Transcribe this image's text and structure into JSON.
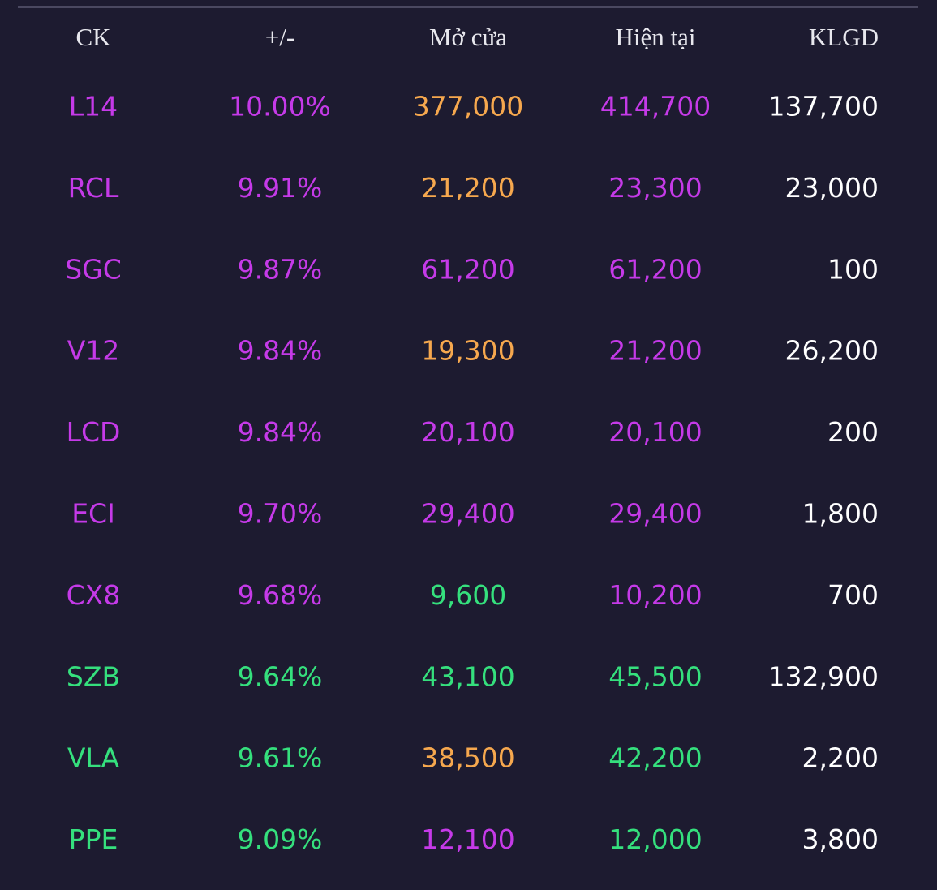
{
  "table": {
    "headers": [
      "CK",
      "+/-",
      "Mở cửa",
      "Hiện tại",
      "KLGD"
    ],
    "rows": [
      [
        "L14",
        "10.00%",
        "377,000",
        "414,700",
        "137,700"
      ],
      [
        "RCL",
        "9.91%",
        "21,200",
        "23,300",
        "23,000"
      ],
      [
        "SGC",
        "9.87%",
        "61,200",
        "61,200",
        "100"
      ],
      [
        "V12",
        "9.84%",
        "19,300",
        "21,200",
        "26,200"
      ],
      [
        "LCD",
        "9.84%",
        "20,100",
        "20,100",
        "200"
      ],
      [
        "ECI",
        "9.70%",
        "29,400",
        "29,400",
        "1,800"
      ],
      [
        "CX8",
        "9.68%",
        "9,600",
        "10,200",
        "700"
      ],
      [
        "SZB",
        "9.64%",
        "43,100",
        "45,500",
        "132,900"
      ],
      [
        "VLA",
        "9.61%",
        "38,500",
        "42,200",
        "2,200"
      ],
      [
        "PPE",
        "9.09%",
        "12,100",
        "12,000",
        "3,800"
      ]
    ],
    "cell_colors": [
      [
        "#c53ae8",
        "#c53ae8",
        "#f6a84e",
        "#c53ae8",
        "#ffffff"
      ],
      [
        "#c53ae8",
        "#c53ae8",
        "#f6a84e",
        "#c53ae8",
        "#ffffff"
      ],
      [
        "#c53ae8",
        "#c53ae8",
        "#c53ae8",
        "#c53ae8",
        "#ffffff"
      ],
      [
        "#c53ae8",
        "#c53ae8",
        "#f6a84e",
        "#c53ae8",
        "#ffffff"
      ],
      [
        "#c53ae8",
        "#c53ae8",
        "#c53ae8",
        "#c53ae8",
        "#ffffff"
      ],
      [
        "#c53ae8",
        "#c53ae8",
        "#c53ae8",
        "#c53ae8",
        "#ffffff"
      ],
      [
        "#c53ae8",
        "#c53ae8",
        "#35e07d",
        "#c53ae8",
        "#ffffff"
      ],
      [
        "#35e07d",
        "#35e07d",
        "#35e07d",
        "#35e07d",
        "#ffffff"
      ],
      [
        "#35e07d",
        "#35e07d",
        "#f6a84e",
        "#35e07d",
        "#ffffff"
      ],
      [
        "#35e07d",
        "#35e07d",
        "#c53ae8",
        "#35e07d",
        "#ffffff"
      ]
    ]
  }
}
